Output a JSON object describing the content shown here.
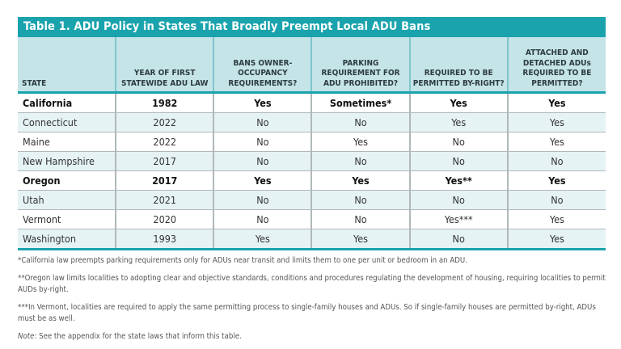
{
  "title": "Table 1. ADU Policy in States That Broadly Preempt Local ADU Bans",
  "columns": [
    "STATE",
    "YEAR OF FIRST STATEWIDE ADU LAW",
    "BANS OWNER-OCCUPANCY REQUIREMENTS?",
    "PARKING REQUIREMENT FOR ADU PROHIBITED?",
    "REQUIRED TO BE PERMITTED BY-RIGHT?",
    "ATTACHED AND DETACHED ADUs REQUIRED TO BE PERMITTED?"
  ],
  "rows": [
    {
      "cells": [
        "California",
        "1982",
        "Yes",
        "Sometimes*",
        "Yes",
        "Yes"
      ],
      "bold": true
    },
    {
      "cells": [
        "Connecticut",
        "2022",
        "No",
        "No",
        "Yes",
        "Yes"
      ],
      "bold": false
    },
    {
      "cells": [
        "Maine",
        "2022",
        "No",
        "Yes",
        "No",
        "Yes"
      ],
      "bold": false
    },
    {
      "cells": [
        "New Hampshire",
        "2017",
        "No",
        "No",
        "No",
        "No"
      ],
      "bold": false
    },
    {
      "cells": [
        "Oregon",
        "2017",
        "Yes",
        "Yes",
        "Yes**",
        "Yes"
      ],
      "bold": true
    },
    {
      "cells": [
        "Utah",
        "2021",
        "No",
        "No",
        "No",
        "No"
      ],
      "bold": false
    },
    {
      "cells": [
        "Vermont",
        "2020",
        "No",
        "No",
        "Yes***",
        "Yes"
      ],
      "bold": false
    },
    {
      "cells": [
        "Washington",
        "1993",
        "Yes",
        "Yes",
        "No",
        "Yes"
      ],
      "bold": false
    }
  ],
  "footnotes": [
    "*California law preempts parking requirements only for ADUs near transit and limits them to one per unit or bedroom in an ADU.",
    "**Oregon law limits localities to adopting clear and objective standards, conditions and procedures regulating the development of housing, requiring localities to permit AUDs by-right.",
    "***In Vermont, localities are required to apply the same permitting process to single-family houses and ADUs. So if single-family houses are permitted by-right, ADUs must be as well."
  ],
  "note": {
    "label": "Note",
    "text": ": See the appendix for the state laws that inform this table."
  },
  "colors": {
    "accent": "#1aa3ad",
    "header_bg": "#c4e4e7",
    "alt_row": "#e5f3f4"
  }
}
